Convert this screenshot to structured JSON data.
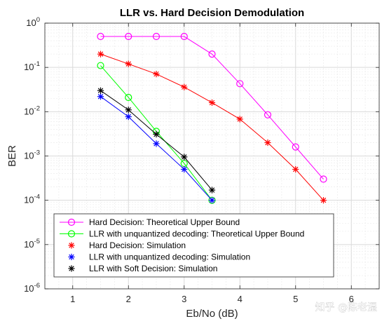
{
  "chart_data": {
    "type": "line",
    "title": "LLR vs. Hard Decision Demodulation",
    "xlabel": "Eb/No (dB)",
    "ylabel": "BER",
    "xlim": [
      0.5,
      6.5
    ],
    "ylim": [
      1e-06,
      1
    ],
    "yscale": "log",
    "grid": true,
    "minor_grid": true,
    "legend_position": "bottom-left",
    "x_ticks": [
      "1",
      "2",
      "3",
      "4",
      "5",
      "6"
    ],
    "y_ticks": [
      {
        "base": "10",
        "exp": "-6"
      },
      {
        "base": "10",
        "exp": "-5"
      },
      {
        "base": "10",
        "exp": "-4"
      },
      {
        "base": "10",
        "exp": "-3"
      },
      {
        "base": "10",
        "exp": "-2"
      },
      {
        "base": "10",
        "exp": "-1"
      },
      {
        "base": "10",
        "exp": "0"
      }
    ],
    "series": [
      {
        "name": "Hard Decision: Theoretical Upper Bound",
        "color": "#ff00ff",
        "marker": "circle",
        "line": true,
        "x": [
          1.5,
          2.0,
          2.5,
          3.0,
          3.5,
          4.0,
          4.5,
          5.0,
          5.5
        ],
        "y": [
          0.5,
          0.5,
          0.5,
          0.5,
          0.2,
          0.043,
          0.0085,
          0.0016,
          0.0003
        ]
      },
      {
        "name": "LLR with unquantized decoding: Theoretical Upper Bound",
        "color": "#00ff00",
        "marker": "circle",
        "line": true,
        "x": [
          1.5,
          2.0,
          2.5,
          3.0,
          3.5
        ],
        "y": [
          0.11,
          0.021,
          0.0036,
          0.00068,
          0.0001
        ]
      },
      {
        "name": "Hard Decision: Simulation",
        "color": "#ff0000",
        "marker": "asterisk",
        "line": true,
        "x": [
          1.5,
          2.0,
          2.5,
          3.0,
          3.5,
          4.0,
          4.5,
          5.0,
          5.5
        ],
        "y": [
          0.2,
          0.12,
          0.071,
          0.036,
          0.016,
          0.0068,
          0.002,
          0.0005,
          0.0001
        ]
      },
      {
        "name": "LLR with unquantized decoding: Simulation",
        "color": "#0000ff",
        "marker": "asterisk",
        "line": true,
        "x": [
          1.5,
          2.0,
          2.5,
          3.0,
          3.5
        ],
        "y": [
          0.022,
          0.0077,
          0.0019,
          0.0005,
          0.0001
        ]
      },
      {
        "name": "LLR with Soft Decision: Simulation",
        "color": "#000000",
        "marker": "asterisk",
        "line": true,
        "x": [
          1.5,
          2.0,
          2.5,
          3.0,
          3.5
        ],
        "y": [
          0.03,
          0.011,
          0.0031,
          0.00095,
          0.00017
        ]
      }
    ]
  },
  "watermark": "知乎 @陈老湿"
}
